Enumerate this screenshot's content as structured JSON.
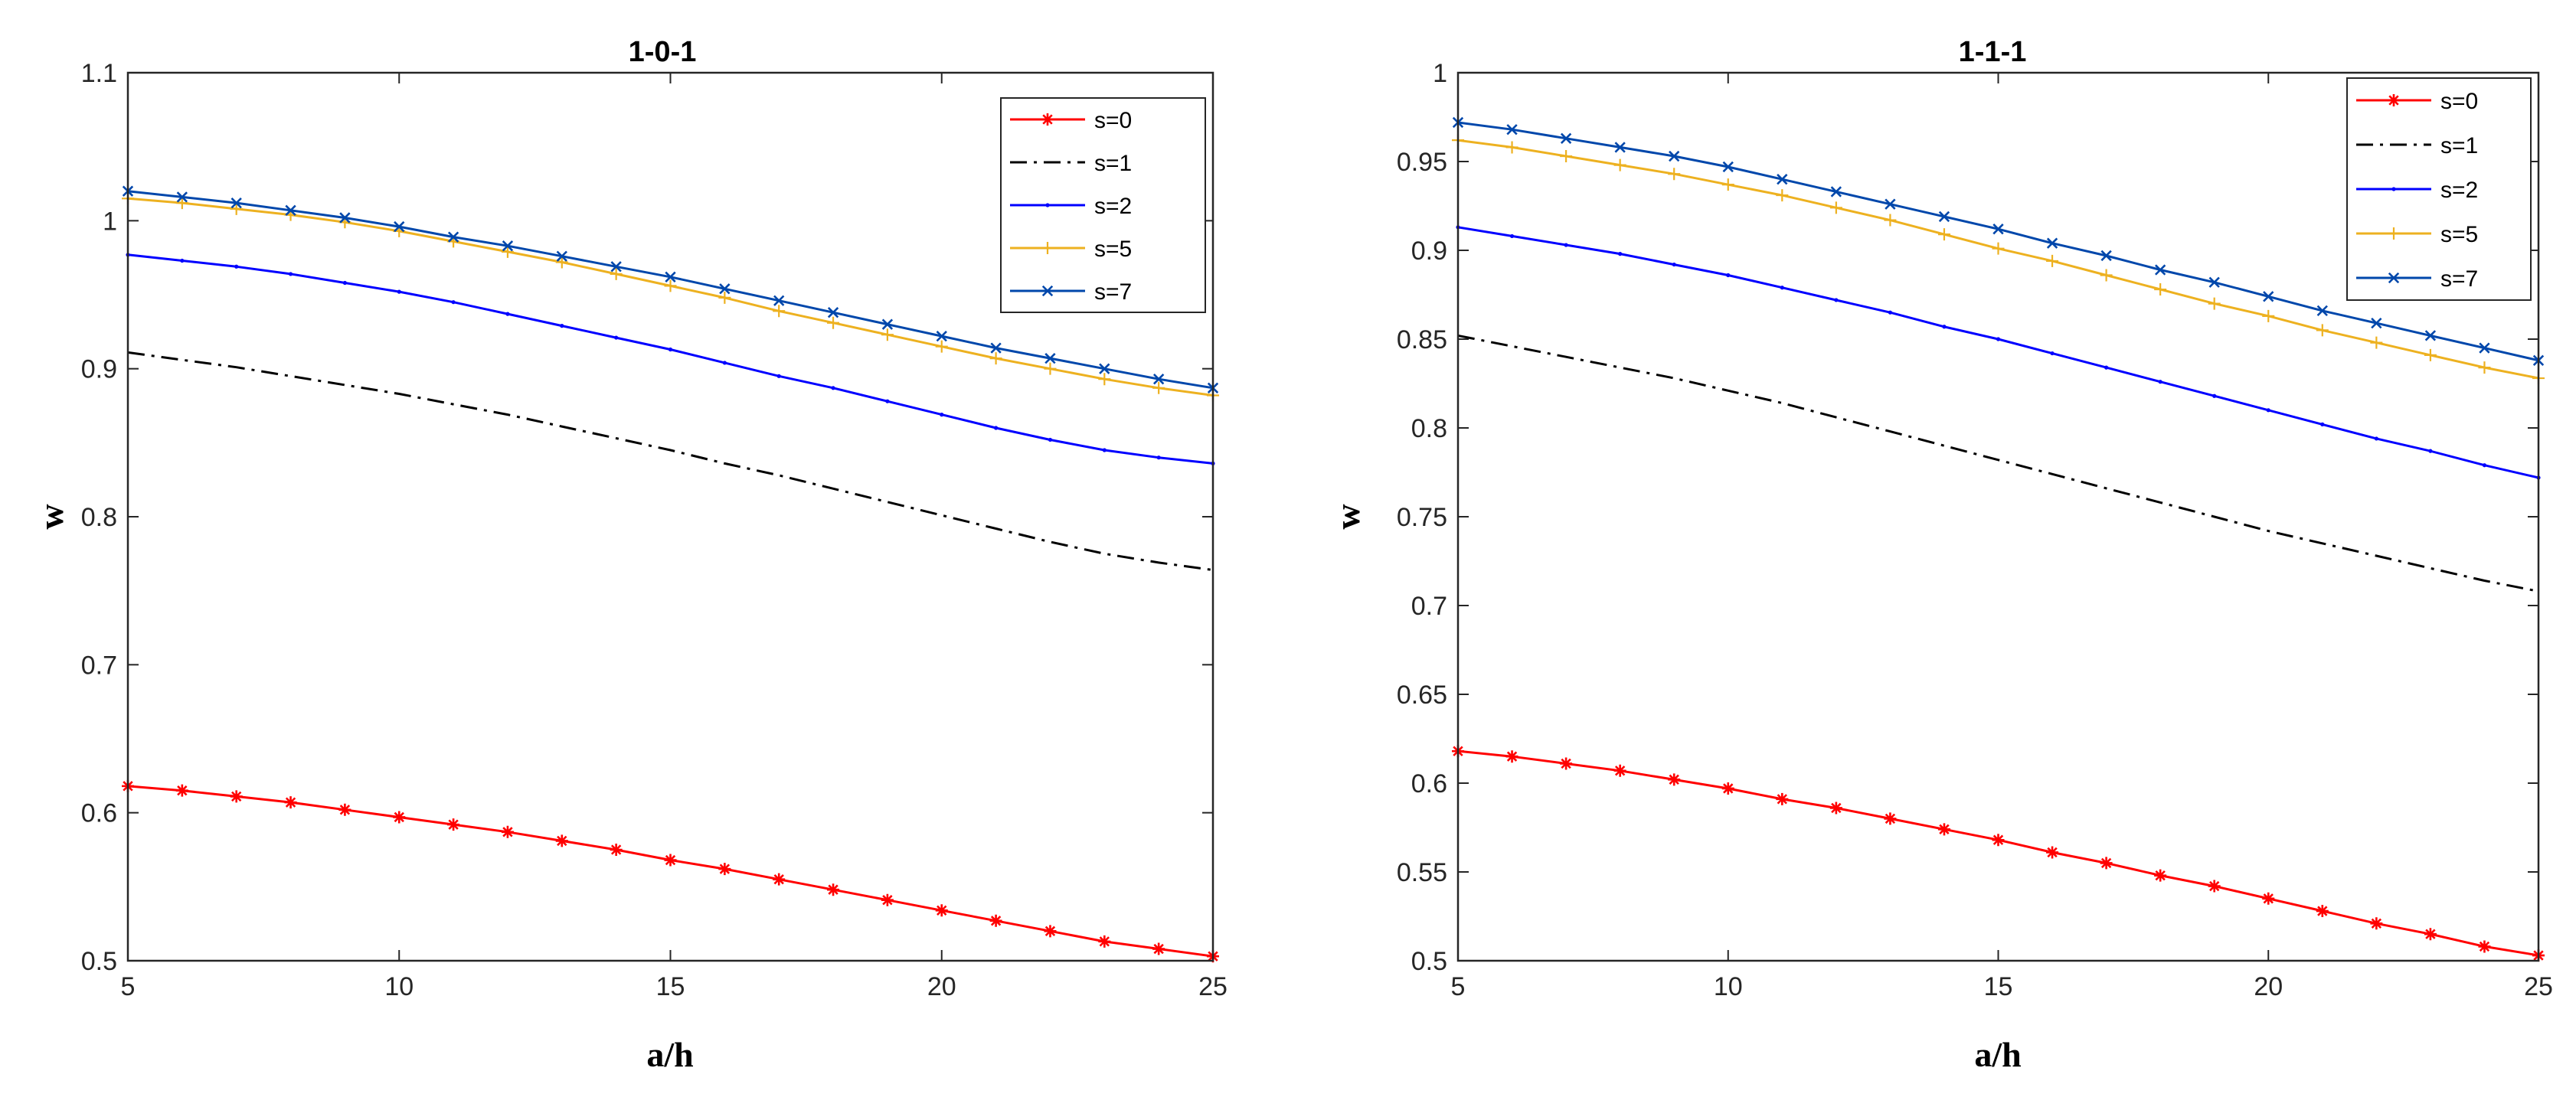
{
  "chart_data": [
    {
      "type": "line",
      "title": "1-0-1",
      "xlabel": "a/h",
      "ylabel": "w",
      "xlim": [
        5,
        25
      ],
      "ylim": [
        0.5,
        1.1
      ],
      "xticks": [
        5,
        10,
        15,
        20,
        25
      ],
      "xtick_labels": [
        "5",
        "10",
        "15",
        "20",
        "25"
      ],
      "yticks": [
        0.5,
        0.6,
        0.7,
        0.8,
        0.9,
        1.0,
        1.1
      ],
      "ytick_labels": [
        "0.5",
        "0.6",
        "0.7",
        "0.8",
        "0.9",
        "1",
        "1.1"
      ],
      "legend_position": "top-right",
      "x": [
        5,
        6,
        7,
        8,
        9,
        10,
        11,
        12,
        13,
        14,
        15,
        16,
        17,
        18,
        19,
        20,
        21,
        22,
        23,
        24,
        25
      ],
      "series": [
        {
          "name": "s=0",
          "color": "#ff0000",
          "line": "solid",
          "marker": "asterisk",
          "values": [
            0.618,
            0.615,
            0.611,
            0.607,
            0.602,
            0.597,
            0.592,
            0.587,
            0.581,
            0.575,
            0.568,
            0.562,
            0.555,
            0.548,
            0.541,
            0.534,
            0.527,
            0.52,
            0.513,
            0.508,
            0.503
          ]
        },
        {
          "name": "s=1",
          "color": "#000000",
          "line": "dashdot",
          "marker": "none",
          "values": [
            0.911,
            0.906,
            0.901,
            0.895,
            0.889,
            0.883,
            0.876,
            0.869,
            0.861,
            0.853,
            0.845,
            0.836,
            0.828,
            0.819,
            0.81,
            0.801,
            0.792,
            0.783,
            0.775,
            0.769,
            0.764
          ]
        },
        {
          "name": "s=2",
          "color": "#0000ff",
          "line": "solid",
          "marker": "dot",
          "values": [
            0.977,
            0.973,
            0.969,
            0.964,
            0.958,
            0.952,
            0.945,
            0.937,
            0.929,
            0.921,
            0.913,
            0.904,
            0.895,
            0.887,
            0.878,
            0.869,
            0.86,
            0.852,
            0.845,
            0.84,
            0.836
          ]
        },
        {
          "name": "s=5",
          "color": "#edb120",
          "line": "solid",
          "marker": "plus",
          "values": [
            1.015,
            1.012,
            1.008,
            1.004,
            0.999,
            0.993,
            0.986,
            0.979,
            0.972,
            0.964,
            0.956,
            0.948,
            0.939,
            0.931,
            0.923,
            0.915,
            0.907,
            0.9,
            0.893,
            0.887,
            0.882
          ]
        },
        {
          "name": "s=7",
          "color": "#0047ab",
          "line": "solid",
          "marker": "cross",
          "values": [
            1.02,
            1.016,
            1.012,
            1.007,
            1.002,
            0.996,
            0.989,
            0.983,
            0.976,
            0.969,
            0.962,
            0.954,
            0.946,
            0.938,
            0.93,
            0.922,
            0.914,
            0.907,
            0.9,
            0.893,
            0.887
          ]
        }
      ]
    },
    {
      "type": "line",
      "title": "1-1-1",
      "xlabel": "a/h",
      "ylabel": "w",
      "xlim": [
        5,
        25
      ],
      "ylim": [
        0.5,
        1.0
      ],
      "xticks": [
        5,
        10,
        15,
        20,
        25
      ],
      "xtick_labels": [
        "5",
        "10",
        "15",
        "20",
        "25"
      ],
      "yticks": [
        0.5,
        0.55,
        0.6,
        0.65,
        0.7,
        0.75,
        0.8,
        0.85,
        0.9,
        0.95,
        1.0
      ],
      "ytick_labels": [
        "0.5",
        "0.55",
        "0.6",
        "0.65",
        "0.7",
        "0.75",
        "0.8",
        "0.85",
        "0.9",
        "0.95",
        "1"
      ],
      "legend_position": "top-right",
      "x": [
        5,
        6,
        7,
        8,
        9,
        10,
        11,
        12,
        13,
        14,
        15,
        16,
        17,
        18,
        19,
        20,
        21,
        22,
        23,
        24,
        25
      ],
      "series": [
        {
          "name": "s=0",
          "color": "#ff0000",
          "line": "solid",
          "marker": "asterisk",
          "values": [
            0.618,
            0.615,
            0.611,
            0.607,
            0.602,
            0.597,
            0.591,
            0.586,
            0.58,
            0.574,
            0.568,
            0.561,
            0.555,
            0.548,
            0.542,
            0.535,
            0.528,
            0.521,
            0.515,
            0.508,
            0.503
          ]
        },
        {
          "name": "s=1",
          "color": "#000000",
          "line": "dashdot",
          "marker": "none",
          "values": [
            0.852,
            0.846,
            0.84,
            0.834,
            0.828,
            0.821,
            0.814,
            0.806,
            0.798,
            0.79,
            0.782,
            0.774,
            0.766,
            0.758,
            0.75,
            0.742,
            0.735,
            0.728,
            0.721,
            0.714,
            0.708
          ]
        },
        {
          "name": "s=2",
          "color": "#0000ff",
          "line": "solid",
          "marker": "dot",
          "values": [
            0.913,
            0.908,
            0.903,
            0.898,
            0.892,
            0.886,
            0.879,
            0.872,
            0.865,
            0.857,
            0.85,
            0.842,
            0.834,
            0.826,
            0.818,
            0.81,
            0.802,
            0.794,
            0.787,
            0.779,
            0.772
          ]
        },
        {
          "name": "s=5",
          "color": "#edb120",
          "line": "solid",
          "marker": "plus",
          "values": [
            0.962,
            0.958,
            0.953,
            0.948,
            0.943,
            0.937,
            0.931,
            0.924,
            0.917,
            0.909,
            0.901,
            0.894,
            0.886,
            0.878,
            0.87,
            0.863,
            0.855,
            0.848,
            0.841,
            0.834,
            0.828
          ]
        },
        {
          "name": "s=7",
          "color": "#0047ab",
          "line": "solid",
          "marker": "cross",
          "values": [
            0.972,
            0.968,
            0.963,
            0.958,
            0.953,
            0.947,
            0.94,
            0.933,
            0.926,
            0.919,
            0.912,
            0.904,
            0.897,
            0.889,
            0.882,
            0.874,
            0.866,
            0.859,
            0.852,
            0.845,
            0.838
          ]
        }
      ]
    }
  ]
}
